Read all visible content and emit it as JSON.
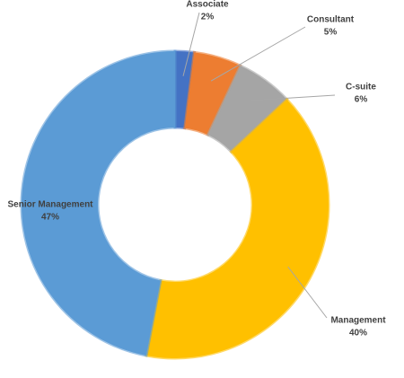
{
  "chart_data": {
    "type": "donut",
    "categories": [
      "Associate",
      "Consultant",
      "C-suite",
      "Management",
      "Senior Management"
    ],
    "values": [
      2,
      5,
      6,
      40,
      47
    ],
    "value_labels": [
      "2%",
      "5%",
      "6%",
      "40%",
      "47%"
    ],
    "colors": [
      "#4472c4",
      "#ed7d31",
      "#a5a5a5",
      "#ffc000",
      "#5b9bd5"
    ]
  }
}
